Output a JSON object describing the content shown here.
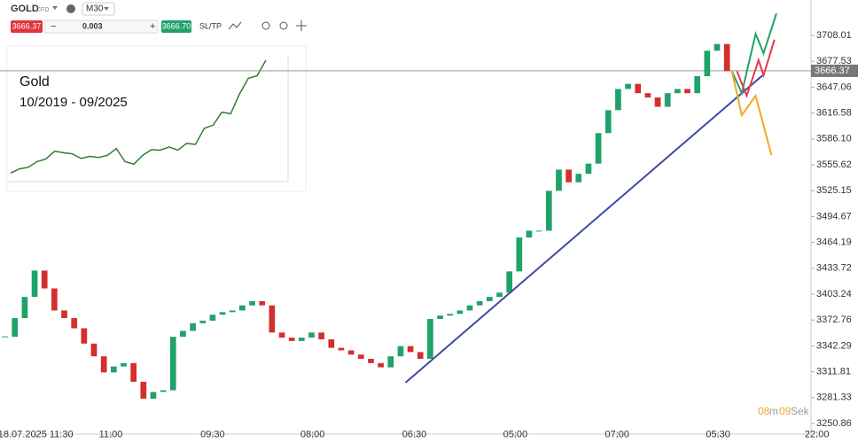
{
  "toolbar": {
    "symbol": "GOLD",
    "symbol_type": "CFD",
    "timeframe": "M30",
    "sell_price": "3666.37",
    "volume": "0.003",
    "buy_price": "3666.70",
    "sl_tp": "SL/TP"
  },
  "inset": {
    "title": "Gold",
    "period": "10/2019 - 09/2025",
    "color": "#2e7d32",
    "ylim": [
      1400,
      3750
    ],
    "values": [
      1480,
      1560,
      1590,
      1700,
      1750,
      1900,
      1870,
      1850,
      1760,
      1800,
      1780,
      1820,
      1950,
      1700,
      1650,
      1820,
      1930,
      1920,
      1980,
      1920,
      2050,
      2030,
      2340,
      2400,
      2650,
      2620,
      3000,
      3300,
      3350,
      3650
    ]
  },
  "countdown": {
    "minutes": "08",
    "minutes_unit": "m",
    "seconds": "09",
    "seconds_unit": "Sek"
  },
  "chart_data": {
    "type": "candlestick",
    "up_color": "#1fa36b",
    "down_color": "#d32f2f",
    "values": [
      3353,
      3375,
      3400,
      3431,
      3410,
      3384,
      3375,
      3363,
      3345,
      3330,
      3311,
      3318,
      3322,
      3300,
      3280,
      3288,
      3290,
      3353,
      3360,
      3369,
      3372,
      3379,
      3382,
      3384,
      3390,
      3395,
      3390,
      3358,
      3352,
      3348,
      3352,
      3358,
      3350,
      3340,
      3337,
      3332,
      3327,
      3322,
      3317,
      3330,
      3342,
      3335,
      3327,
      3374,
      3378,
      3380,
      3384,
      3390,
      3395,
      3400,
      3405,
      3430,
      3470,
      3478,
      3478,
      3525,
      3550,
      3535,
      3545,
      3557,
      3593,
      3620,
      3645,
      3651,
      3640,
      3635,
      3624,
      3640,
      3645,
      3640,
      3660,
      3690,
      3698,
      3666
    ],
    "xlim": [
      -0.5,
      81.5
    ],
    "xticks": [
      {
        "value": 3.1,
        "label": "18.07.2025 11:30"
      },
      {
        "value": 10.7,
        "label": "11:00"
      },
      {
        "value": 21,
        "label": "09:30"
      },
      {
        "value": 31.1,
        "label": "08:00"
      },
      {
        "value": 41.4,
        "label": "06:30"
      },
      {
        "value": 51.6,
        "label": "05:00"
      },
      {
        "value": 61.9,
        "label": "07:00"
      },
      {
        "value": 72.1,
        "label": "05:30"
      },
      {
        "value": 82.1,
        "label": "22:00"
      }
    ],
    "ylim": [
      3238.3,
      3749.8
    ],
    "yticks": [
      3708.01,
      3677.53,
      3647.06,
      3616.58,
      {
        "value": 3586.1,
        "label": "3586.10"
      },
      3555.62,
      3525.15,
      3494.67,
      3464.19,
      3433.72,
      3403.24,
      3372.76,
      3342.29,
      3311.81,
      3281.33,
      3250.86
    ],
    "current_price": 3666.37,
    "trend_line": {
      "color": "#3f4aa6",
      "x": [
        40.5,
        76.6
      ],
      "values": [
        3299,
        3661
      ]
    },
    "scenarios": [
      {
        "color": "#1fa36b",
        "x": [
          73.5,
          74.5,
          75.9,
          76.7,
          78
        ],
        "values": [
          3666,
          3640,
          3710,
          3687,
          3734
        ]
      },
      {
        "color": "#e53950",
        "x": [
          74,
          75,
          76.2,
          76.7,
          77.8
        ],
        "values": [
          3666,
          3637,
          3679,
          3661,
          3703
        ]
      },
      {
        "color": "#f5a623",
        "x": [
          73.5,
          74.5,
          75.9,
          77.5
        ],
        "values": [
          3666,
          3614,
          3637,
          3567
        ]
      }
    ]
  }
}
